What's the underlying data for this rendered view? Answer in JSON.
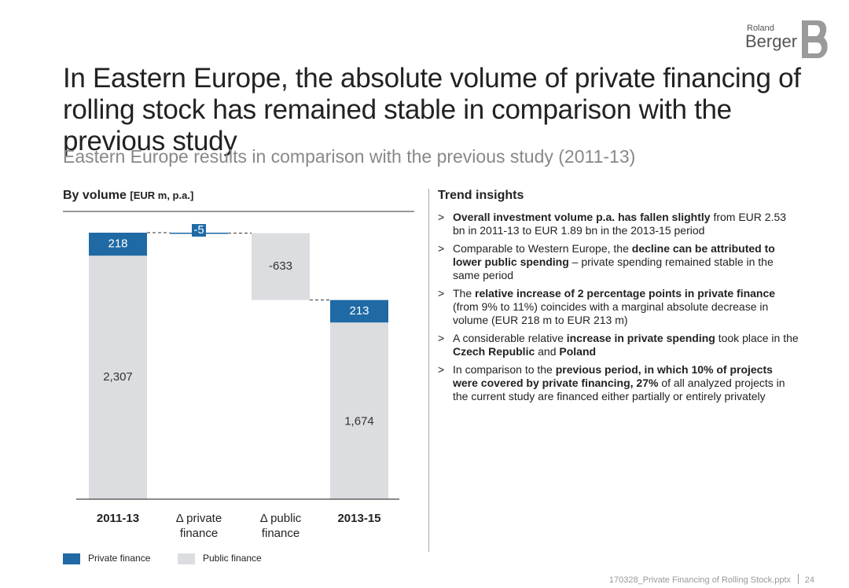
{
  "header": {
    "brand_small": "Roland",
    "brand": "Berger",
    "title": "In Eastern Europe, the absolute volume of private financing of rolling stock has remained stable in comparison with the previous study",
    "subtitle": "Eastern Europe results in comparison with the previous study (2011-13)"
  },
  "chart_data": {
    "type": "waterfall",
    "title": "By volume",
    "unit": "[EUR m, p.a.]",
    "categories": [
      "2011-13",
      "Δ private finance",
      "Δ public finance",
      "2013-15"
    ],
    "kinds": [
      "total",
      "delta",
      "delta",
      "total"
    ],
    "series": [
      {
        "name": "Private finance",
        "color": "#1f6aa5",
        "values": [
          218,
          -5,
          null,
          213
        ],
        "value_labels": [
          "218",
          "-5",
          null,
          "213"
        ]
      },
      {
        "name": "Public finance",
        "color": "#dcdde0",
        "values": [
          2307,
          null,
          -633,
          1674
        ],
        "value_labels": [
          "2,307",
          null,
          "-633",
          "1,674"
        ]
      }
    ],
    "legend": "bottom-left"
  },
  "insights": {
    "title": "Trend insights",
    "items": [
      [
        {
          "text": "Overall investment volume p.a. has fallen slightly",
          "bold": true
        },
        {
          "text": " from EUR 2.53 bn in 2011-13 to EUR 1.89 bn in the 2013-15 period",
          "bold": false
        }
      ],
      [
        {
          "text": "Comparable to Western Europe, the ",
          "bold": false
        },
        {
          "text": "decline can be attributed to lower public spending",
          "bold": true
        },
        {
          "text": " – private spending remained stable in the same period",
          "bold": false
        }
      ],
      [
        {
          "text": "The ",
          "bold": false
        },
        {
          "text": "relative increase of 2 percentage points in private finance",
          "bold": true
        },
        {
          "text": " (from 9% to 11%) coincides with a marginal absolute decrease in volume (EUR 218 m to EUR 213 m)",
          "bold": false
        }
      ],
      [
        {
          "text": "A considerable relative ",
          "bold": false
        },
        {
          "text": "increase in private spending",
          "bold": true
        },
        {
          "text": " took place in the ",
          "bold": false
        },
        {
          "text": "Czech Republic",
          "bold": true
        },
        {
          "text": " and ",
          "bold": false
        },
        {
          "text": "Poland",
          "bold": true
        }
      ],
      [
        {
          "text": "In comparison to the ",
          "bold": false
        },
        {
          "text": "previous period, in which 10% of projects were covered by private financing, 27%",
          "bold": true
        },
        {
          "text": " of all analyzed projects in the current study are financed either partially or entirely privately",
          "bold": false
        }
      ]
    ]
  },
  "footer": {
    "file": "170328_Private Financing of Rolling Stock.pptx",
    "page": 24
  }
}
